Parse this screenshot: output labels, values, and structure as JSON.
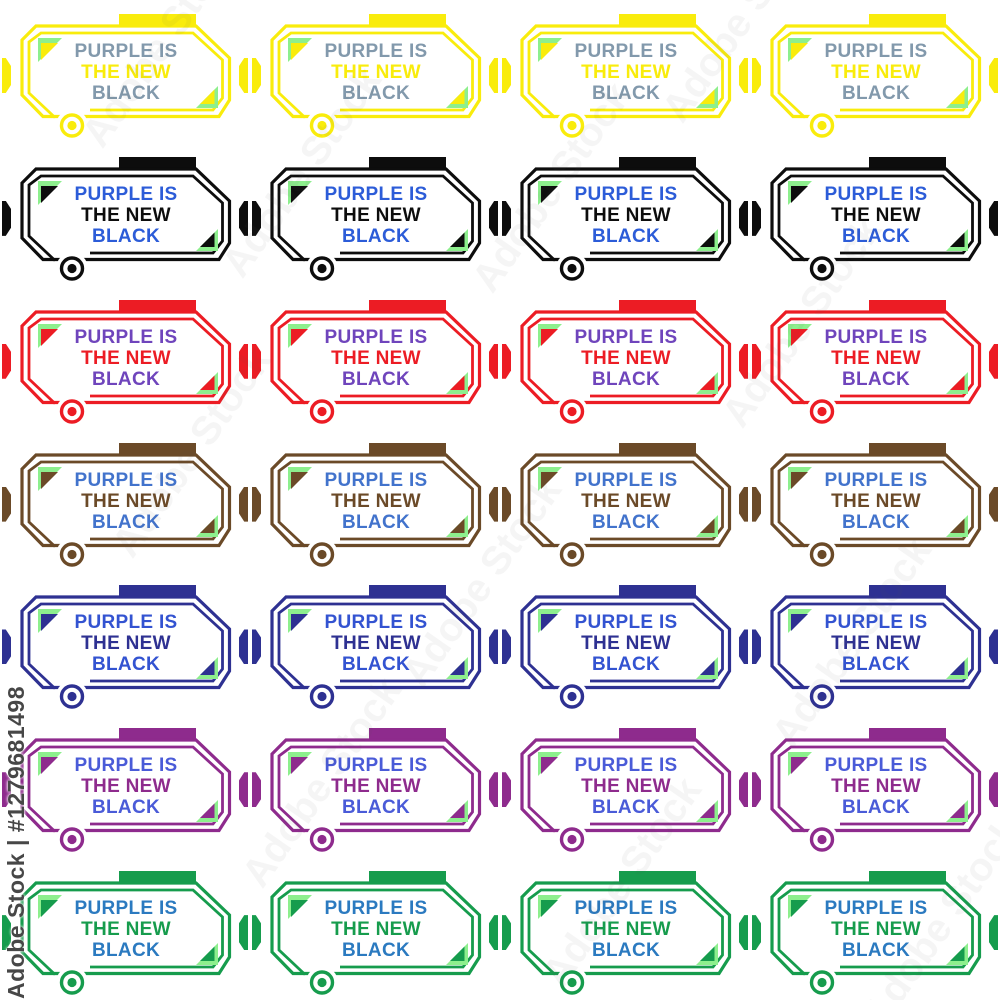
{
  "page": {
    "background": "#ffffff"
  },
  "watermark": {
    "side_label": "Adobe Stock | #1279681498",
    "brand": "Adobe Stock",
    "color": "#474747"
  },
  "card_text": {
    "line1": "PURPLE IS",
    "line2": "THE NEW",
    "line3": "BLACK"
  },
  "decor": {
    "triangle_green": "#8DEF8D",
    "halo": "#ffffff"
  },
  "grid": {
    "columns": 4,
    "rows": [
      {
        "name": "yellow",
        "frame_color": "#F9EC0C",
        "accent_color": "#8299AC"
      },
      {
        "name": "black",
        "frame_color": "#0D0D0D",
        "accent_color": "#2C5CD8"
      },
      {
        "name": "red",
        "frame_color": "#EC1C24",
        "accent_color": "#6F45BC"
      },
      {
        "name": "brown",
        "frame_color": "#6B4A28",
        "accent_color": "#4273CC"
      },
      {
        "name": "navy",
        "frame_color": "#2E3192",
        "accent_color": "#3353D1"
      },
      {
        "name": "purple",
        "frame_color": "#8E2B8D",
        "accent_color": "#4A5BD8"
      },
      {
        "name": "green",
        "frame_color": "#169C4D",
        "accent_color": "#2B7AC0"
      }
    ]
  }
}
